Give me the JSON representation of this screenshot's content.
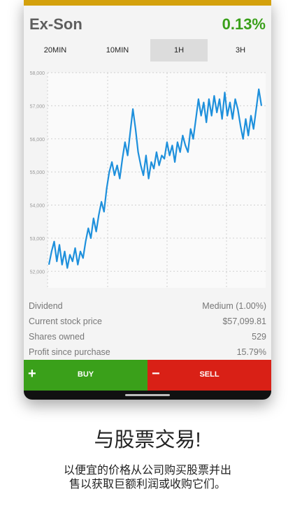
{
  "stock": {
    "name": "Ex-Son",
    "change": "0.13%"
  },
  "tabs": [
    {
      "label": "20MIN",
      "active": false
    },
    {
      "label": "10MIN",
      "active": false
    },
    {
      "label": "1H",
      "active": true
    },
    {
      "label": "3H",
      "active": false
    }
  ],
  "chart_data": {
    "type": "line",
    "ylim": [
      51500,
      58000
    ],
    "y_ticks": [
      "58,000",
      "57,000",
      "56,000",
      "55,000",
      "54,000",
      "53,000",
      "52,000"
    ],
    "grid": true,
    "series": [
      {
        "color": "#1e90dc",
        "values": [
          52200,
          52600,
          52900,
          52300,
          52800,
          52200,
          52600,
          52100,
          52500,
          52300,
          52700,
          52200,
          52600,
          52400,
          52900,
          53300,
          53000,
          53600,
          53200,
          53700,
          54100,
          53800,
          54500,
          55000,
          55300,
          54900,
          55200,
          54800,
          55400,
          55900,
          55500,
          56200,
          56900,
          56300,
          55600,
          55200,
          54900,
          55500,
          54800,
          55300,
          55100,
          55600,
          55200,
          55500,
          55400,
          55900,
          55500,
          55800,
          55300,
          55900,
          55600,
          56100,
          55800,
          55600,
          56300,
          56000,
          56600,
          57200,
          56700,
          57100,
          56500,
          57200,
          56700,
          57300,
          56800,
          57200,
          56600,
          57400,
          56700,
          57100,
          56600,
          57200,
          56900,
          56400,
          56000,
          56600,
          56100,
          56700,
          56300,
          56900,
          57500,
          57000
        ]
      }
    ]
  },
  "stats": [
    {
      "label": "Dividend",
      "value": "Medium (1.00%)"
    },
    {
      "label": "Current stock price",
      "value": "$57,099.81"
    },
    {
      "label": "Shares owned",
      "value": "529"
    },
    {
      "label": "Profit since purchase",
      "value": "15.79%"
    }
  ],
  "actions": {
    "buy_label": "BUY",
    "buy_icon": "+",
    "sell_label": "SELL",
    "sell_icon": "−"
  },
  "promo": {
    "headline": "与股票交易!",
    "desc_line1": "以便宜的价格从公司购买股票并出",
    "desc_line2": "售以获取巨额利润或收购它们。"
  },
  "colors": {
    "accent": "#d4a10c",
    "buy": "#3aa01a",
    "sell": "#d92016",
    "line": "#1e90dc"
  }
}
